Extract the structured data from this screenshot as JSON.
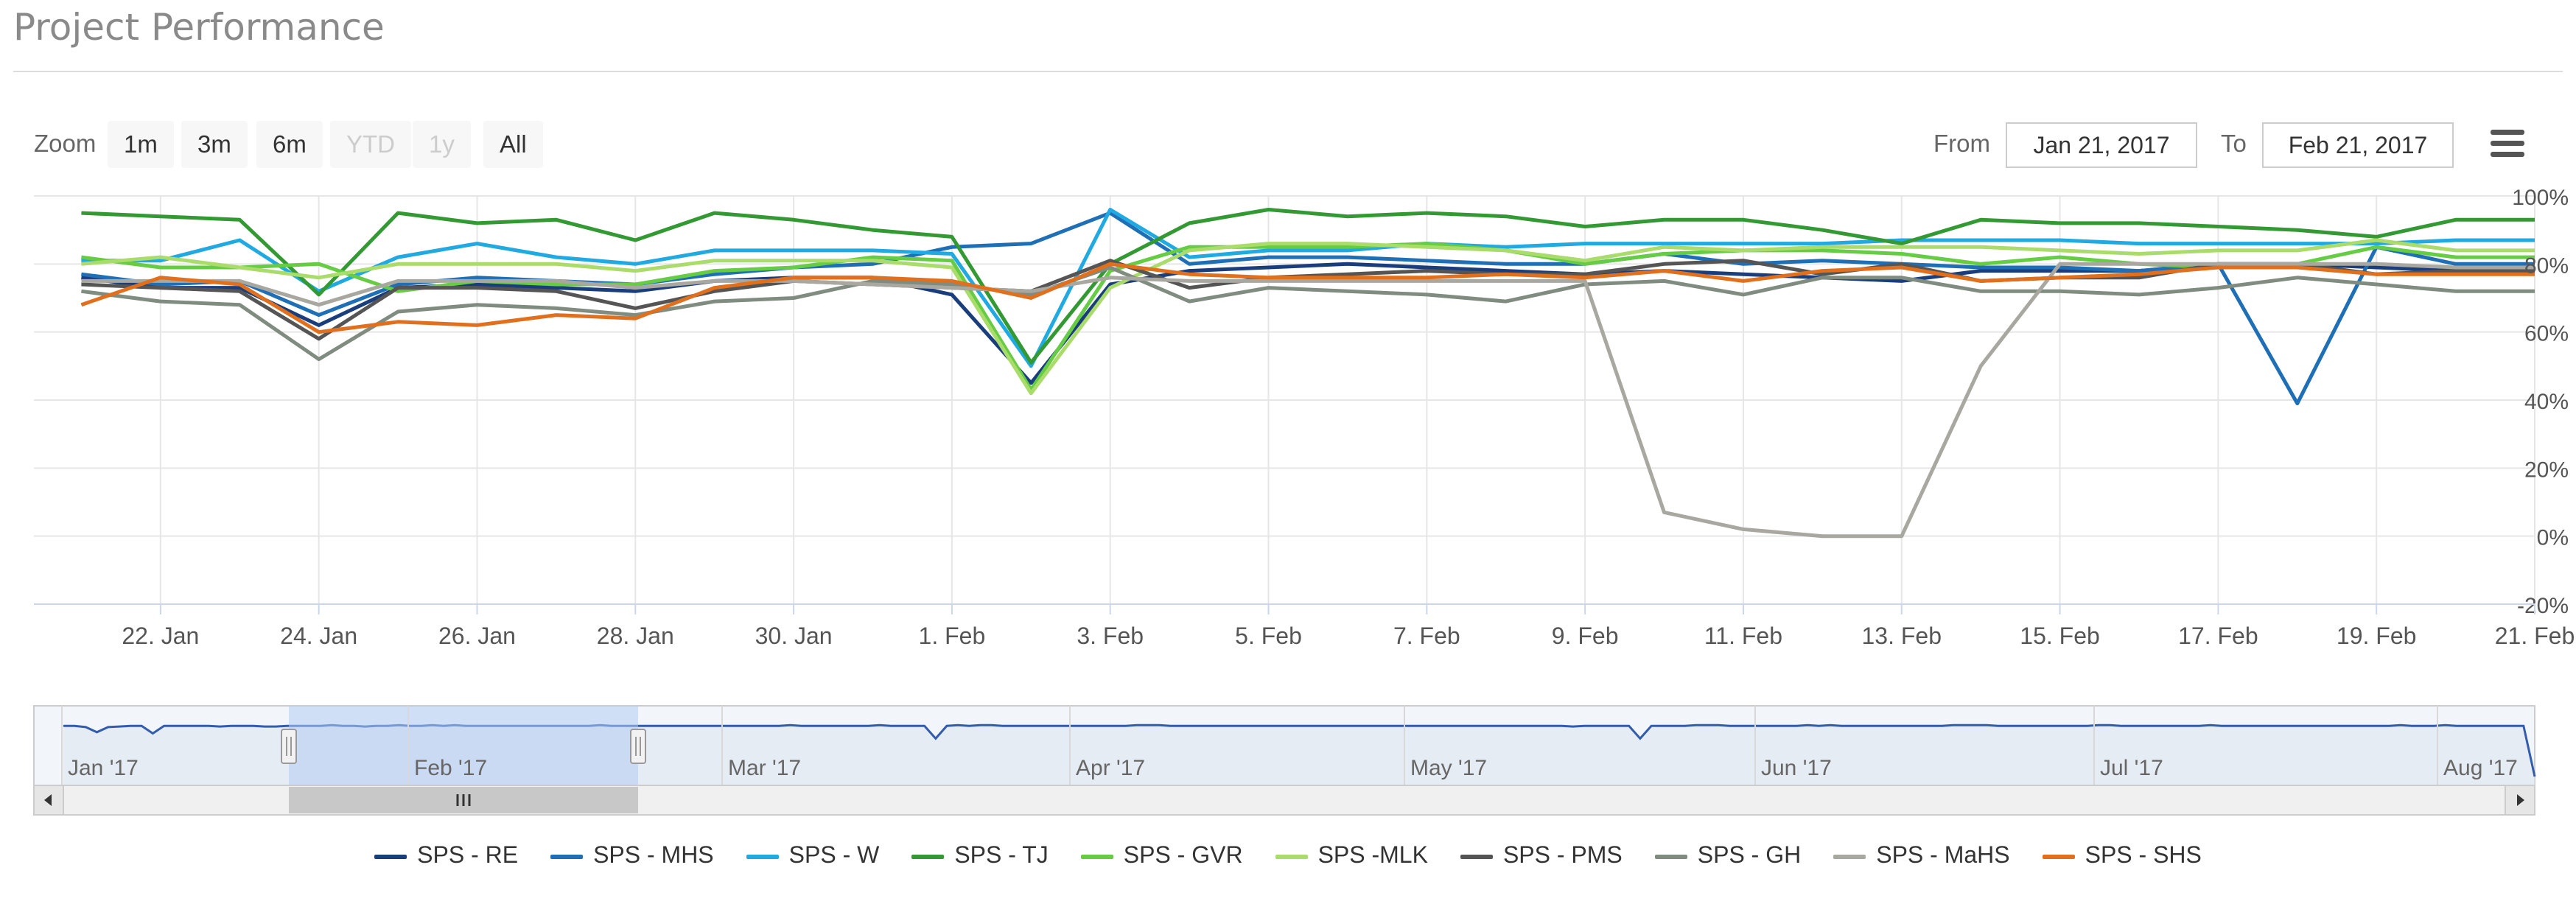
{
  "header": {
    "title": "Project Performance"
  },
  "toolbar": {
    "zoom_label": "Zoom",
    "zoom_buttons": [
      {
        "label": "1m",
        "enabled": true
      },
      {
        "label": "3m",
        "enabled": true
      },
      {
        "label": "6m",
        "enabled": true
      },
      {
        "label": "YTD",
        "enabled": false
      },
      {
        "label": "1y",
        "enabled": false
      },
      {
        "label": "All",
        "enabled": true
      }
    ],
    "from_label": "From",
    "from_value": "Jan 21, 2017",
    "to_label": "To",
    "to_value": "Feb 21, 2017",
    "menu_icon": "hamburger-menu-icon"
  },
  "chart_data": {
    "type": "line",
    "x_start": "2017-01-21",
    "x_end": "2017-02-21",
    "x_ticks": [
      "22. Jan",
      "24. Jan",
      "26. Jan",
      "28. Jan",
      "30. Jan",
      "1. Feb",
      "3. Feb",
      "5. Feb",
      "7. Feb",
      "9. Feb",
      "11. Feb",
      "13. Feb",
      "15. Feb",
      "17. Feb",
      "19. Feb",
      "21. Feb"
    ],
    "y_ticks": [
      "100%",
      "80%",
      "60%",
      "40%",
      "20%",
      "0%",
      "-20%"
    ],
    "ylim": [
      -20,
      100
    ],
    "y_unit": "%",
    "grid": true,
    "legend_position": "bottom-center",
    "x": [
      "2017-01-21",
      "2017-01-22",
      "2017-01-23",
      "2017-01-24",
      "2017-01-25",
      "2017-01-26",
      "2017-01-27",
      "2017-01-28",
      "2017-01-29",
      "2017-01-30",
      "2017-01-31",
      "2017-02-01",
      "2017-02-02",
      "2017-02-03",
      "2017-02-04",
      "2017-02-05",
      "2017-02-06",
      "2017-02-07",
      "2017-02-08",
      "2017-02-09",
      "2017-02-10",
      "2017-02-11",
      "2017-02-12",
      "2017-02-13",
      "2017-02-14",
      "2017-02-15",
      "2017-02-16",
      "2017-02-17",
      "2017-02-18",
      "2017-02-19",
      "2017-02-20",
      "2017-02-21"
    ],
    "series": [
      {
        "name": "SPS - RE",
        "color": "#1a3d7c",
        "values": [
          76,
          73,
          73,
          62,
          73,
          74,
          73,
          72,
          75,
          76,
          76,
          71,
          45,
          74,
          78,
          79,
          80,
          79,
          78,
          77,
          78,
          77,
          76,
          75,
          78,
          78,
          78,
          80,
          80,
          79,
          78,
          79
        ]
      },
      {
        "name": "SPS - MHS",
        "color": "#1f6fb7",
        "values": [
          77,
          74,
          75,
          65,
          74,
          76,
          75,
          74,
          77,
          79,
          80,
          85,
          86,
          95,
          80,
          82,
          82,
          81,
          80,
          80,
          83,
          80,
          81,
          80,
          79,
          79,
          78,
          80,
          39,
          85,
          80,
          80
        ]
      },
      {
        "name": "SPS - W",
        "color": "#21a9e1",
        "values": [
          81,
          81,
          87,
          72,
          82,
          86,
          82,
          80,
          84,
          84,
          84,
          83,
          50,
          96,
          82,
          84,
          84,
          86,
          85,
          86,
          86,
          86,
          86,
          87,
          87,
          87,
          86,
          86,
          86,
          86,
          87,
          87
        ]
      },
      {
        "name": "SPS - TJ",
        "color": "#339933",
        "values": [
          95,
          94,
          93,
          71,
          95,
          92,
          93,
          87,
          95,
          93,
          90,
          88,
          51,
          80,
          92,
          96,
          94,
          95,
          94,
          91,
          93,
          93,
          90,
          86,
          93,
          92,
          92,
          91,
          90,
          88,
          93,
          93
        ]
      },
      {
        "name": "SPS - GVR",
        "color": "#66cc44",
        "values": [
          82,
          79,
          79,
          80,
          72,
          75,
          74,
          74,
          78,
          79,
          82,
          81,
          43,
          78,
          85,
          85,
          85,
          86,
          84,
          80,
          83,
          84,
          84,
          83,
          80,
          82,
          80,
          79,
          80,
          85,
          82,
          82
        ]
      },
      {
        "name": "SPS -MLK",
        "color": "#a9dc6a",
        "values": [
          80,
          82,
          79,
          76,
          80,
          80,
          80,
          78,
          81,
          81,
          81,
          79,
          42,
          73,
          84,
          86,
          86,
          85,
          84,
          81,
          85,
          84,
          85,
          85,
          85,
          84,
          83,
          84,
          84,
          87,
          84,
          84
        ]
      },
      {
        "name": "SPS - PMS",
        "color": "#555555",
        "values": [
          74,
          73,
          72,
          58,
          73,
          73,
          72,
          67,
          72,
          75,
          74,
          73,
          72,
          81,
          73,
          76,
          77,
          78,
          77,
          77,
          80,
          81,
          77,
          80,
          75,
          76,
          76,
          80,
          80,
          77,
          78,
          78
        ]
      },
      {
        "name": "SPS - GH",
        "color": "#7f8c7f",
        "values": [
          72,
          69,
          68,
          52,
          66,
          68,
          67,
          65,
          69,
          70,
          75,
          74,
          71,
          79,
          69,
          73,
          72,
          71,
          69,
          74,
          75,
          71,
          76,
          76,
          72,
          72,
          71,
          73,
          76,
          74,
          72,
          72
        ]
      },
      {
        "name": "SPS - MaHS",
        "color": "#a8a8a0",
        "values": [
          75,
          75,
          75,
          68,
          75,
          75,
          75,
          73,
          75,
          75,
          74,
          73,
          72,
          76,
          75,
          75,
          75,
          75,
          75,
          75,
          7,
          2,
          0,
          0,
          50,
          80,
          80,
          80,
          80,
          80,
          79,
          79
        ]
      },
      {
        "name": "SPS - SHS",
        "color": "#e0701e",
        "values": [
          68,
          76,
          74,
          60,
          63,
          62,
          65,
          64,
          73,
          76,
          76,
          75,
          70,
          80,
          77,
          76,
          76,
          76,
          77,
          76,
          78,
          75,
          78,
          79,
          75,
          76,
          77,
          79,
          79,
          77,
          77,
          77
        ]
      }
    ],
    "navigator": {
      "x_labels": [
        "Jan '17",
        "Feb '17",
        "Mar '17",
        "Apr '17",
        "May '17",
        "Jun '17",
        "Jul '17",
        "Aug '17"
      ],
      "values": [
        80,
        80,
        78,
        70,
        78,
        79,
        80,
        80,
        68,
        80,
        80,
        80,
        80,
        80,
        79,
        80,
        80,
        80,
        79,
        79,
        80,
        80,
        80,
        80,
        81,
        80,
        80,
        79,
        80,
        80,
        81,
        80,
        80,
        81,
        80,
        81,
        80,
        80,
        80,
        80,
        80,
        80,
        80,
        80,
        80,
        80,
        80,
        80,
        81,
        80,
        80,
        80,
        80,
        80,
        80,
        80,
        80,
        80,
        80,
        80,
        80,
        80,
        80,
        80,
        80,
        81,
        80,
        80,
        80,
        80,
        80,
        80,
        80,
        81,
        80,
        80,
        80,
        80,
        60,
        80,
        81,
        80,
        81,
        81,
        80,
        80,
        80,
        80,
        80,
        80,
        80,
        80,
        80,
        80,
        80,
        80,
        81,
        81,
        81,
        80,
        80,
        80,
        80,
        80,
        80,
        80,
        80,
        80,
        80,
        80,
        80,
        80,
        80,
        80,
        80,
        80,
        80,
        80,
        80,
        80,
        80,
        80,
        80,
        80,
        80,
        80,
        80,
        80,
        80,
        80,
        80,
        80,
        80,
        80,
        80,
        79,
        80,
        80,
        80,
        80,
        80,
        60,
        80,
        80,
        80,
        80,
        81,
        81,
        81,
        80,
        80,
        80,
        80,
        80,
        80,
        80,
        81,
        80,
        81,
        80,
        80,
        80,
        80,
        80,
        80,
        80,
        80,
        80,
        80,
        81,
        81,
        81,
        81,
        80,
        80,
        80,
        80,
        80,
        80,
        80,
        80,
        80,
        81,
        81,
        80,
        80,
        80,
        80,
        80,
        80,
        80,
        80,
        81,
        80,
        80,
        80,
        80,
        80,
        80,
        80,
        80,
        80,
        80,
        80,
        80,
        80,
        80,
        80,
        80,
        81,
        80,
        80,
        80,
        81,
        80,
        80,
        80,
        80,
        80,
        80,
        80,
        0
      ]
    }
  }
}
